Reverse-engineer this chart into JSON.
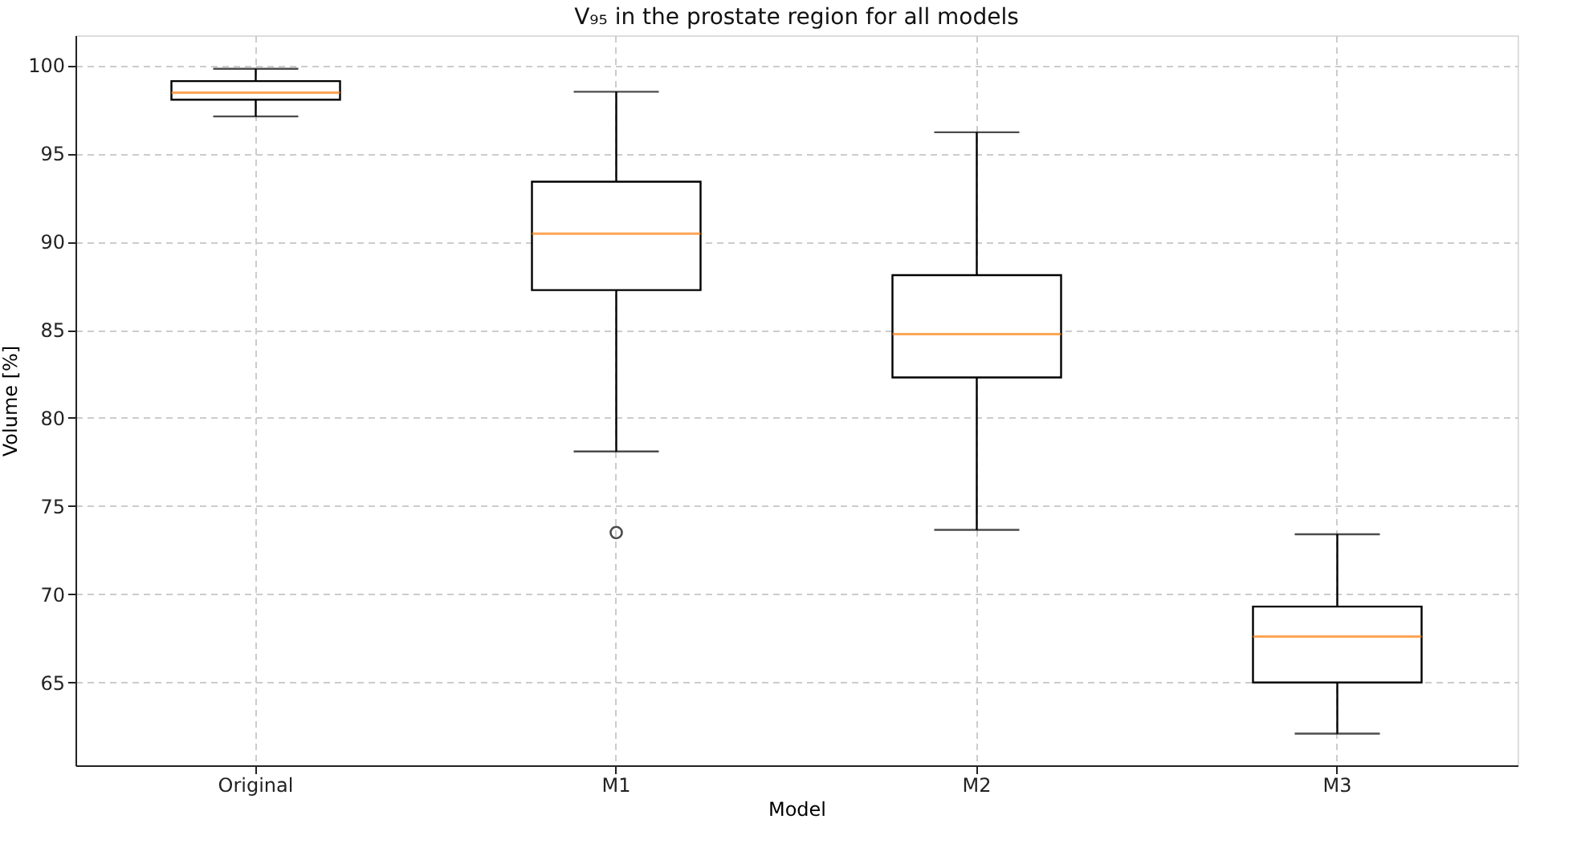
{
  "chart_data": {
    "type": "box",
    "title": "V₉₅ in the prostate region for all models",
    "xlabel": "Model",
    "ylabel": "Volume [%]",
    "categories": [
      "Original",
      "M1",
      "M2",
      "M3"
    ],
    "series": [
      {
        "color": "#000000",
        "boxes": [
          {
            "low": 97.1,
            "q1": 98.05,
            "median": 98.45,
            "q3": 99.1,
            "high": 99.8
          },
          {
            "low": 78.1,
            "q1": 87.25,
            "median": 90.45,
            "q3": 93.4,
            "high": 98.5,
            "outliers": [
              73.5
            ]
          },
          {
            "low": 73.65,
            "q1": 82.3,
            "median": 84.75,
            "q3": 88.1,
            "high": 96.2
          },
          {
            "low": 62.1,
            "q1": 65.0,
            "median": 67.6,
            "q3": 69.3,
            "high": 73.4
          }
        ]
      }
    ],
    "ylim": [
      60.3,
      101.7
    ],
    "yticks": [
      65,
      70,
      75,
      80,
      85,
      90,
      95,
      100
    ],
    "grid": true
  }
}
